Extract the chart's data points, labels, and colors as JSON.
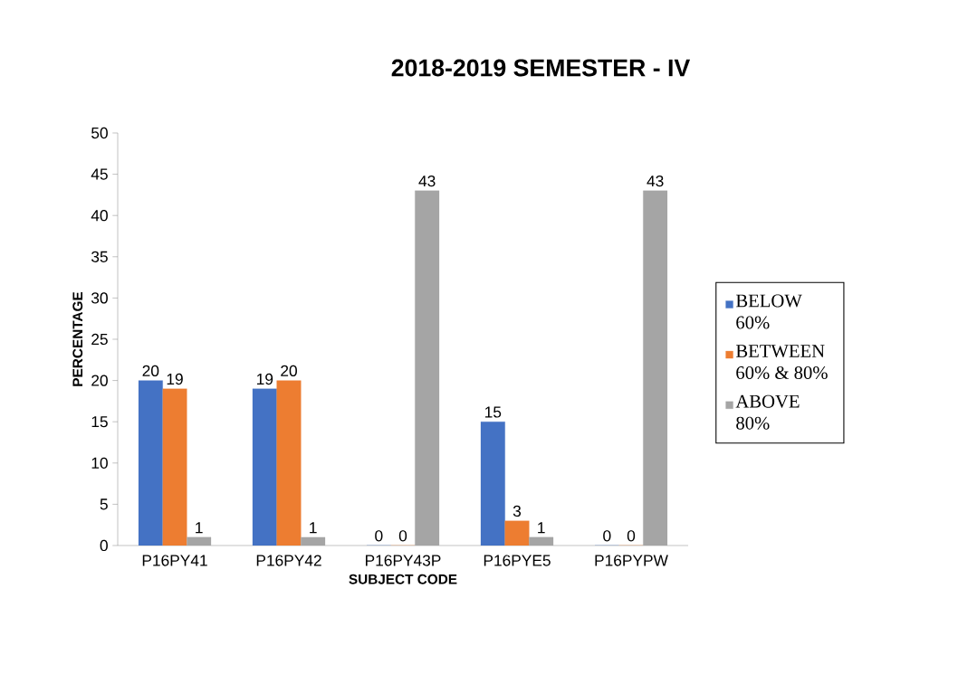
{
  "chart_data": {
    "type": "bar",
    "title": "2018-2019 SEMESTER - IV",
    "xlabel": "SUBJECT CODE",
    "ylabel": "PERCENTAGE",
    "categories": [
      "P16PY41",
      "P16PY42",
      "P16PY43P",
      "P16PYE5",
      "P16PYPW"
    ],
    "series": [
      {
        "name": "BELOW 60%",
        "color": "#4472c4",
        "values": [
          20,
          19,
          0,
          15,
          0
        ]
      },
      {
        "name": "BETWEEN 60% & 80%",
        "color": "#ed7d31",
        "values": [
          19,
          20,
          0,
          3,
          0
        ]
      },
      {
        "name": "ABOVE 80%",
        "color": "#a5a5a5",
        "values": [
          1,
          1,
          43,
          1,
          43
        ]
      }
    ],
    "ylim": [
      0,
      50
    ],
    "yticks": [
      0,
      5,
      10,
      15,
      20,
      25,
      30,
      35,
      40,
      45,
      50
    ],
    "data_labels": true,
    "legend": "right",
    "grid": false
  }
}
